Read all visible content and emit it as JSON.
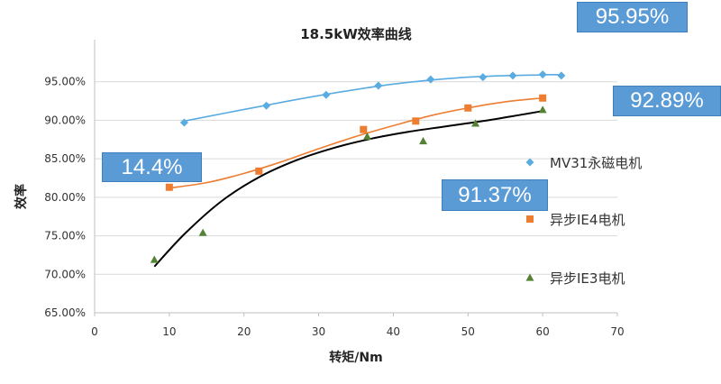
{
  "chart_data": {
    "type": "scatter",
    "title": "18.5kW效率曲线",
    "xlabel": "转矩/Nm",
    "ylabel": "效率",
    "xlim": [
      0,
      70
    ],
    "ylim": [
      65,
      100
    ],
    "x_ticks": [
      "0",
      "10",
      "20",
      "30",
      "40",
      "50",
      "60",
      "70"
    ],
    "y_ticks": [
      "65.00%",
      "70.00%",
      "75.00%",
      "80.00%",
      "85.00%",
      "90.00%",
      "95.00%"
    ],
    "grid": "horizontal",
    "legend_position": "right",
    "series": [
      {
        "name": "MV31永磁电机",
        "color": "#5aabe0",
        "marker": "diamond",
        "points": [
          [
            12,
            89.7
          ],
          [
            23,
            91.9
          ],
          [
            31,
            93.3
          ],
          [
            38,
            94.5
          ],
          [
            45,
            95.3
          ],
          [
            52,
            95.6
          ],
          [
            56,
            95.8
          ],
          [
            60,
            95.95
          ],
          [
            62.5,
            95.8
          ]
        ],
        "trend": [
          [
            12,
            89.9
          ],
          [
            20,
            91.4
          ],
          [
            30,
            93.2
          ],
          [
            40,
            94.7
          ],
          [
            50,
            95.6
          ],
          [
            60,
            95.9
          ],
          [
            62.5,
            95.9
          ]
        ]
      },
      {
        "name": "异步IE4电机",
        "color": "#ed7d31",
        "marker": "square",
        "points": [
          [
            10,
            81.3
          ],
          [
            22,
            83.4
          ],
          [
            36,
            88.8
          ],
          [
            43,
            89.9
          ],
          [
            50,
            91.6
          ],
          [
            60,
            92.89
          ]
        ],
        "trend": [
          [
            10,
            81.2
          ],
          [
            15,
            81.9
          ],
          [
            20,
            83.1
          ],
          [
            25,
            84.6
          ],
          [
            30,
            86.3
          ],
          [
            35,
            87.9
          ],
          [
            40,
            89.3
          ],
          [
            45,
            90.6
          ],
          [
            50,
            91.6
          ],
          [
            55,
            92.4
          ],
          [
            60,
            92.89
          ]
        ]
      },
      {
        "name": "异步IE3电机",
        "color": "#548235",
        "marker": "triangle",
        "points": [
          [
            8,
            71.9
          ],
          [
            14.5,
            75.4
          ],
          [
            36.5,
            87.9
          ],
          [
            44,
            87.3
          ],
          [
            51,
            89.6
          ],
          [
            60,
            91.37
          ]
        ],
        "trend": [
          [
            8,
            71.0
          ],
          [
            12,
            75.2
          ],
          [
            17,
            79.5
          ],
          [
            22,
            82.6
          ],
          [
            27,
            84.8
          ],
          [
            32,
            86.4
          ],
          [
            37,
            87.6
          ],
          [
            42,
            88.5
          ],
          [
            47,
            89.2
          ],
          [
            52,
            89.9
          ],
          [
            57,
            90.7
          ],
          [
            60,
            91.2
          ]
        ]
      }
    ],
    "trendline_color": "#000000",
    "callouts": [
      "95.95%",
      "92.89%",
      "14.4%",
      "91.37%"
    ]
  }
}
